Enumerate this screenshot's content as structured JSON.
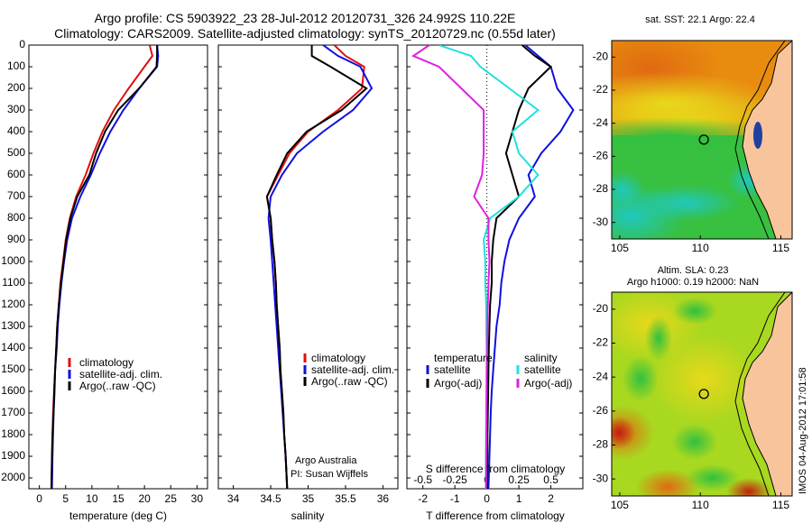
{
  "figure": {
    "title_line1": "Argo profile: CS 5903922_23 28-Jul-2012 20120731_326 24.992S 110.22E",
    "title_line2": "Climatology: CARS2009. Satellite-adjusted climatology: synTS_20120729.nc (0.55d later)",
    "credit_line1": "Argo Australia",
    "credit_line2": "PI: Susan Wijffels",
    "sst_title": "sat. SST: 22.1  Argo: 22.4",
    "sla_title_line1": "Altim. SLA: 0.23",
    "sla_title_line2": "Argo h1000: 0.19 h2000: NaN",
    "side_stamp": "IMOS 04-Aug-2012 17:01:58"
  },
  "colors": {
    "climatology": "#e01010",
    "satellite": "#1010e0",
    "argo": "#000000",
    "sal_satellite": "#20e0e0",
    "sal_argo": "#e020e0",
    "land": "#f8c49c"
  },
  "chart_data": [
    {
      "type": "line",
      "xlabel": "temperature (deg C)",
      "xlim": [
        -2,
        32
      ],
      "xticks": [
        0,
        5,
        10,
        15,
        20,
        25,
        30
      ],
      "ylim": [
        0,
        2050
      ],
      "yticks": [
        0,
        100,
        200,
        300,
        400,
        500,
        600,
        700,
        800,
        900,
        1000,
        1100,
        1200,
        1300,
        1400,
        1500,
        1600,
        1700,
        1800,
        1900,
        2000
      ],
      "yreversed": true,
      "legend": [
        "climatology",
        "satellite-adj. clim.",
        "Argo(..raw -QC)"
      ],
      "legend_position": "lower-middle",
      "series": [
        {
          "name": "climatology",
          "color": "#e01010",
          "x": [
            21.0,
            21.5,
            20.0,
            17.0,
            14.2,
            12.0,
            10.3,
            8.8,
            7.0,
            5.8,
            5.0,
            4.5,
            4.0,
            3.7,
            3.4,
            3.2,
            3.0,
            2.8,
            2.6,
            2.5,
            2.4,
            2.3
          ],
          "y": [
            0,
            50,
            100,
            200,
            300,
            400,
            500,
            600,
            700,
            800,
            900,
            1000,
            1100,
            1200,
            1300,
            1400,
            1500,
            1600,
            1700,
            1800,
            1900,
            2050
          ]
        },
        {
          "name": "satellite-adj. clim.",
          "color": "#1010e0",
          "x": [
            22.4,
            22.6,
            22.4,
            19.0,
            16.0,
            13.5,
            11.5,
            9.8,
            7.8,
            6.2,
            5.3,
            4.7,
            4.2,
            3.8,
            3.5,
            3.3,
            3.0,
            2.9,
            2.7,
            2.6,
            2.5,
            2.4
          ],
          "y": [
            0,
            50,
            100,
            200,
            300,
            400,
            500,
            600,
            700,
            800,
            900,
            1000,
            1100,
            1200,
            1300,
            1400,
            1500,
            1600,
            1700,
            1800,
            1900,
            2050
          ]
        },
        {
          "name": "Argo(..raw -QC)",
          "color": "#000000",
          "x": [
            22.4,
            22.4,
            22.3,
            19.0,
            15.0,
            12.5,
            10.8,
            9.5,
            7.2,
            5.9,
            5.1,
            4.6,
            4.1,
            3.7,
            3.4,
            3.2,
            3.0,
            2.8,
            2.7,
            2.5,
            2.4,
            2.3
          ],
          "y": [
            0,
            50,
            100,
            200,
            300,
            400,
            500,
            600,
            700,
            800,
            900,
            1000,
            1100,
            1200,
            1300,
            1400,
            1500,
            1600,
            1700,
            1800,
            1900,
            2050
          ]
        }
      ]
    },
    {
      "type": "line",
      "xlabel": "salinity",
      "xlim": [
        33.8,
        36.2
      ],
      "xticks": [
        34,
        34.5,
        35,
        35.5,
        36
      ],
      "xticklabels": [
        "34",
        "34.5",
        "35",
        "35.5",
        "36"
      ],
      "ylim": [
        0,
        2050
      ],
      "yreversed": true,
      "legend": [
        "climatology",
        "satellite-adj. clim.",
        "Argo(..raw -QC)"
      ],
      "legend_position": "lower-middle",
      "series": [
        {
          "name": "climatology",
          "color": "#e01010",
          "x": [
            35.35,
            35.5,
            35.75,
            35.72,
            35.4,
            35.0,
            34.75,
            34.6,
            34.45,
            34.5,
            34.52,
            34.55,
            34.57,
            34.58,
            34.6,
            34.62,
            34.63,
            34.65,
            34.67,
            34.68,
            34.7,
            34.72
          ],
          "y": [
            0,
            50,
            100,
            200,
            300,
            400,
            500,
            600,
            700,
            800,
            900,
            1000,
            1100,
            1200,
            1300,
            1400,
            1500,
            1600,
            1700,
            1800,
            1900,
            2050
          ]
        },
        {
          "name": "satellite-adj. clim.",
          "color": "#1010e0",
          "x": [
            35.2,
            35.4,
            35.7,
            35.85,
            35.6,
            35.2,
            34.85,
            34.65,
            34.5,
            34.47,
            34.5,
            34.52,
            34.54,
            34.56,
            34.58,
            34.6,
            34.62,
            34.64,
            34.66,
            34.68,
            34.7,
            34.72
          ],
          "y": [
            0,
            50,
            100,
            200,
            300,
            400,
            500,
            600,
            700,
            800,
            900,
            1000,
            1100,
            1200,
            1300,
            1400,
            1500,
            1600,
            1700,
            1800,
            1900,
            2050
          ]
        },
        {
          "name": "Argo(..raw -QC)",
          "color": "#000000",
          "x": [
            35.05,
            35.05,
            35.3,
            35.78,
            35.45,
            34.98,
            34.72,
            34.58,
            34.45,
            34.5,
            34.52,
            34.55,
            34.57,
            34.58,
            34.6,
            34.62,
            34.63,
            34.65,
            34.67,
            34.68,
            34.7,
            34.72
          ],
          "y": [
            0,
            50,
            100,
            200,
            300,
            400,
            500,
            600,
            700,
            800,
            900,
            1000,
            1100,
            1200,
            1300,
            1400,
            1500,
            1600,
            1700,
            1800,
            1900,
            2050
          ]
        }
      ]
    },
    {
      "type": "line",
      "xlabel": "T difference from climatology",
      "xlabel_top": "S difference from climatology",
      "xlim": [
        -2.5,
        3.0
      ],
      "xticks": [
        -2,
        -1,
        0,
        1,
        2
      ],
      "xticklabels": [
        "-2",
        "-1",
        "0",
        "1",
        "2"
      ],
      "sticks": [
        -0.5,
        -0.25,
        0,
        0.25,
        0.5
      ],
      "sticklabels": [
        "-0.5",
        "-0.25",
        "0",
        "0.25",
        "0.5"
      ],
      "ylim": [
        0,
        2050
      ],
      "yreversed": true,
      "legend": [
        "temperature",
        "satellite",
        "Argo(-adj)",
        "salinity",
        "satellite",
        "Argo(-adj)"
      ],
      "legend_position": "lower",
      "series": [
        {
          "name": "satellite",
          "color": "#1010e0",
          "x": [
            1.2,
            1.6,
            2.0,
            2.2,
            2.7,
            2.3,
            1.7,
            1.3,
            1.5,
            1.0,
            0.7,
            0.55,
            0.45,
            0.4,
            0.3,
            0.25,
            0.2,
            0.15,
            0.12,
            0.1,
            0.08,
            0.05
          ],
          "y": [
            0,
            50,
            100,
            200,
            300,
            400,
            500,
            600,
            700,
            800,
            900,
            1000,
            1100,
            1200,
            1300,
            1400,
            1500,
            1600,
            1700,
            1800,
            1900,
            2050
          ]
        },
        {
          "name": "Argo(-adj)",
          "color": "#000000",
          "x": [
            1.1,
            1.5,
            2.0,
            1.3,
            1.0,
            0.8,
            0.6,
            0.8,
            1.0,
            0.3,
            0.2,
            0.15,
            0.15,
            0.1,
            0.08,
            0.06,
            0.05,
            0.04,
            0.03,
            0.02,
            0.02,
            0.01
          ],
          "y": [
            0,
            50,
            100,
            200,
            300,
            400,
            500,
            600,
            700,
            800,
            900,
            1000,
            1100,
            1200,
            1300,
            1400,
            1500,
            1600,
            1700,
            1800,
            1900,
            2050
          ]
        },
        {
          "name": "satellite",
          "color": "#20e0e0",
          "x": [
            -1.5,
            -0.5,
            -0.2,
            0.7,
            1.6,
            0.8,
            1.0,
            1.6,
            1.0,
            0.1,
            -0.1,
            -0.05,
            -0.05,
            -0.02,
            -0.02,
            -0.01,
            -0.01,
            -0.01,
            -0.02,
            -0.02,
            -0.03,
            -0.03
          ],
          "y": [
            0,
            50,
            100,
            200,
            300,
            400,
            500,
            600,
            700,
            800,
            900,
            1000,
            1100,
            1200,
            1300,
            1400,
            1500,
            1600,
            1700,
            1800,
            1900,
            2050
          ]
        },
        {
          "name": "Argo(-adj)",
          "color": "#e020e0",
          "x": [
            -1.8,
            -2.3,
            -1.5,
            -0.8,
            -0.1,
            -0.1,
            -0.1,
            -0.15,
            -0.4,
            0.05,
            0.05,
            0.08,
            0.05,
            0.03,
            0.02,
            0.01,
            0.0,
            -0.01,
            -0.01,
            -0.02,
            -0.02,
            -0.03
          ],
          "y": [
            0,
            50,
            100,
            200,
            300,
            400,
            500,
            600,
            700,
            800,
            900,
            1000,
            1100,
            1200,
            1300,
            1400,
            1500,
            1600,
            1700,
            1800,
            1900,
            2050
          ]
        }
      ]
    },
    {
      "type": "heatmap",
      "title": "sat. SST: 22.1  Argo: 22.4",
      "xlim": [
        104.5,
        115.7
      ],
      "xticks": [
        105,
        110,
        115
      ],
      "ylim": [
        -31,
        -19
      ],
      "yticks": [
        -30,
        -28,
        -26,
        -24,
        -22,
        -20
      ],
      "marker": {
        "lon": 110.22,
        "lat": -24.992
      }
    },
    {
      "type": "heatmap",
      "title": "Altim. SLA: 0.23",
      "xlim": [
        104.5,
        115.7
      ],
      "xticks": [
        105,
        110,
        115
      ],
      "ylim": [
        -31,
        -19
      ],
      "yticks": [
        -30,
        -28,
        -26,
        -24,
        -22,
        -20
      ],
      "marker": {
        "lon": 110.22,
        "lat": -24.992
      }
    }
  ]
}
